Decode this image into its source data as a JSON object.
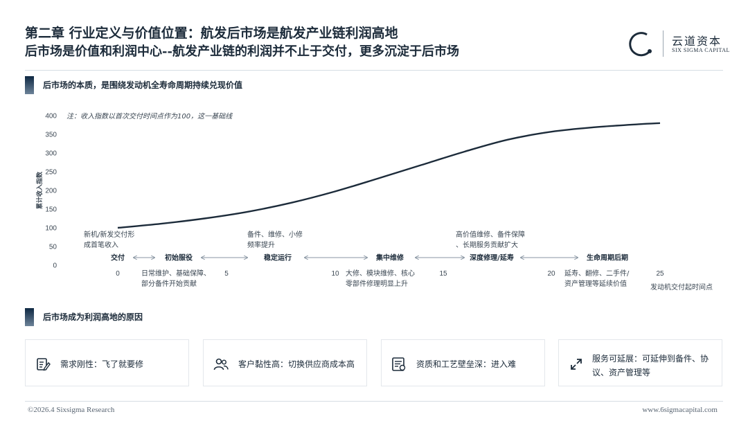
{
  "header": {
    "title": "第二章 行业定义与价值位置：航发后市场是航发产业链利润高地",
    "subtitle": "后市场是价值和利润中心--航发产业链的利润并不止于交付，更多沉淀于后市场",
    "logo_cn": "云道资本",
    "logo_en": "SIX SIGMA CAPITAL"
  },
  "section1": {
    "title": "后市场的本质，是围绕发动机全寿命周期持续兑现价值"
  },
  "chart_data": {
    "type": "line",
    "note": "注：收入指数以首次交付时间点作为100，这一基础线",
    "ylabel": "累计收入指数",
    "xlabel": "发动机交付起时间点",
    "ylim": [
      0,
      400
    ],
    "xlim": [
      0,
      25
    ],
    "yticks": [
      "0",
      "50",
      "100",
      "150",
      "200",
      "250",
      "300",
      "350",
      "400"
    ],
    "xticks": [
      "0",
      "5",
      "10",
      "15",
      "20",
      "25"
    ],
    "series": [
      {
        "x": [
          0,
          2,
          4,
          6,
          8,
          10,
          12,
          14,
          16,
          18,
          20,
          22,
          24,
          25
        ],
        "y": [
          100,
          111,
          125,
          143,
          167,
          197,
          232,
          268,
          304,
          336,
          357,
          369,
          377,
          380
        ]
      }
    ],
    "phases": [
      "交付",
      "初始服役",
      "稳定运行",
      "集中维修",
      "深度修理/延寿",
      "生命周期后期"
    ],
    "annotations_above": [
      "新机/新发交付形成首笔收入",
      "备件、维修、小修频率提升",
      "高价值维修、备件保障、长期服务贡献扩大"
    ],
    "annotations_below": [
      "日常维护、基础保障、部分备件开始贡献",
      "大修、模块维修、核心零部件修理明显上升",
      "延寿、翻修、二手件/资产管理等延续价值"
    ],
    "colors": {
      "line": "#1c2b3a",
      "axis_text": "#3a4652"
    }
  },
  "section2": {
    "title": "后市场成为利润高地的原因"
  },
  "cards": [
    {
      "icon": "clipboard-edit-icon",
      "text": "需求刚性：飞了就要修"
    },
    {
      "icon": "users-icon",
      "text": "客户黏性高：切换供应商成本高"
    },
    {
      "icon": "certificate-list-icon",
      "text": "资质和工艺壁垒深：进入难"
    },
    {
      "icon": "expand-arrows-icon",
      "text": "服务可延展：可延伸到备件、协议、资产管理等"
    }
  ],
  "footer": {
    "copyright": "©2026.4 Sixsigma Research",
    "website": "www.6sigmacapital.com"
  }
}
